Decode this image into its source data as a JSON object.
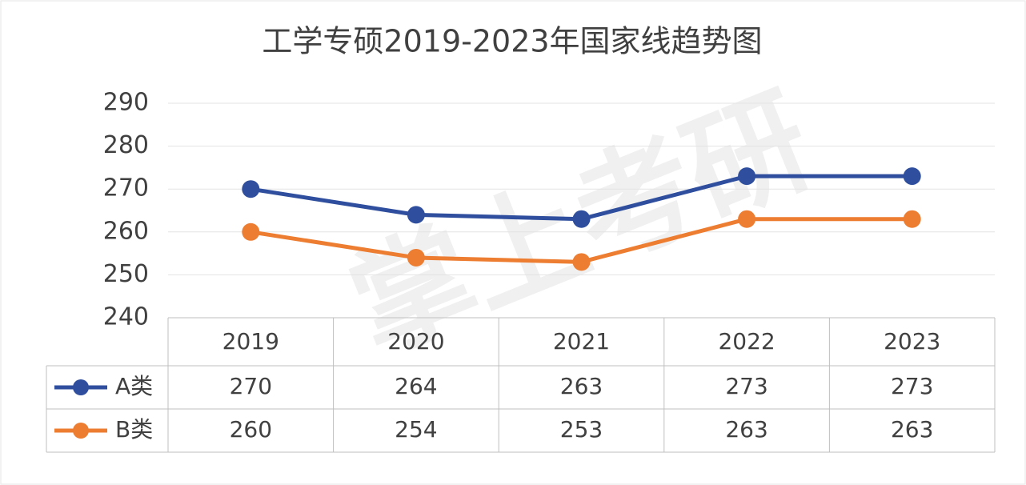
{
  "chart_data": {
    "type": "line",
    "title": "工学专硕2019-2023年国家线趋势图",
    "watermark": "掌上考研",
    "categories": [
      "2019",
      "2020",
      "2021",
      "2022",
      "2023"
    ],
    "series": [
      {
        "name": "A类",
        "color": "#2f4f9e",
        "values": [
          270,
          264,
          263,
          273,
          273
        ]
      },
      {
        "name": "B类",
        "color": "#ed7d31",
        "values": [
          260,
          254,
          253,
          263,
          263
        ]
      }
    ],
    "ylim": [
      240,
      290
    ],
    "yticks": [
      240,
      250,
      260,
      270,
      280,
      290
    ],
    "grid": true,
    "data_table": true
  }
}
